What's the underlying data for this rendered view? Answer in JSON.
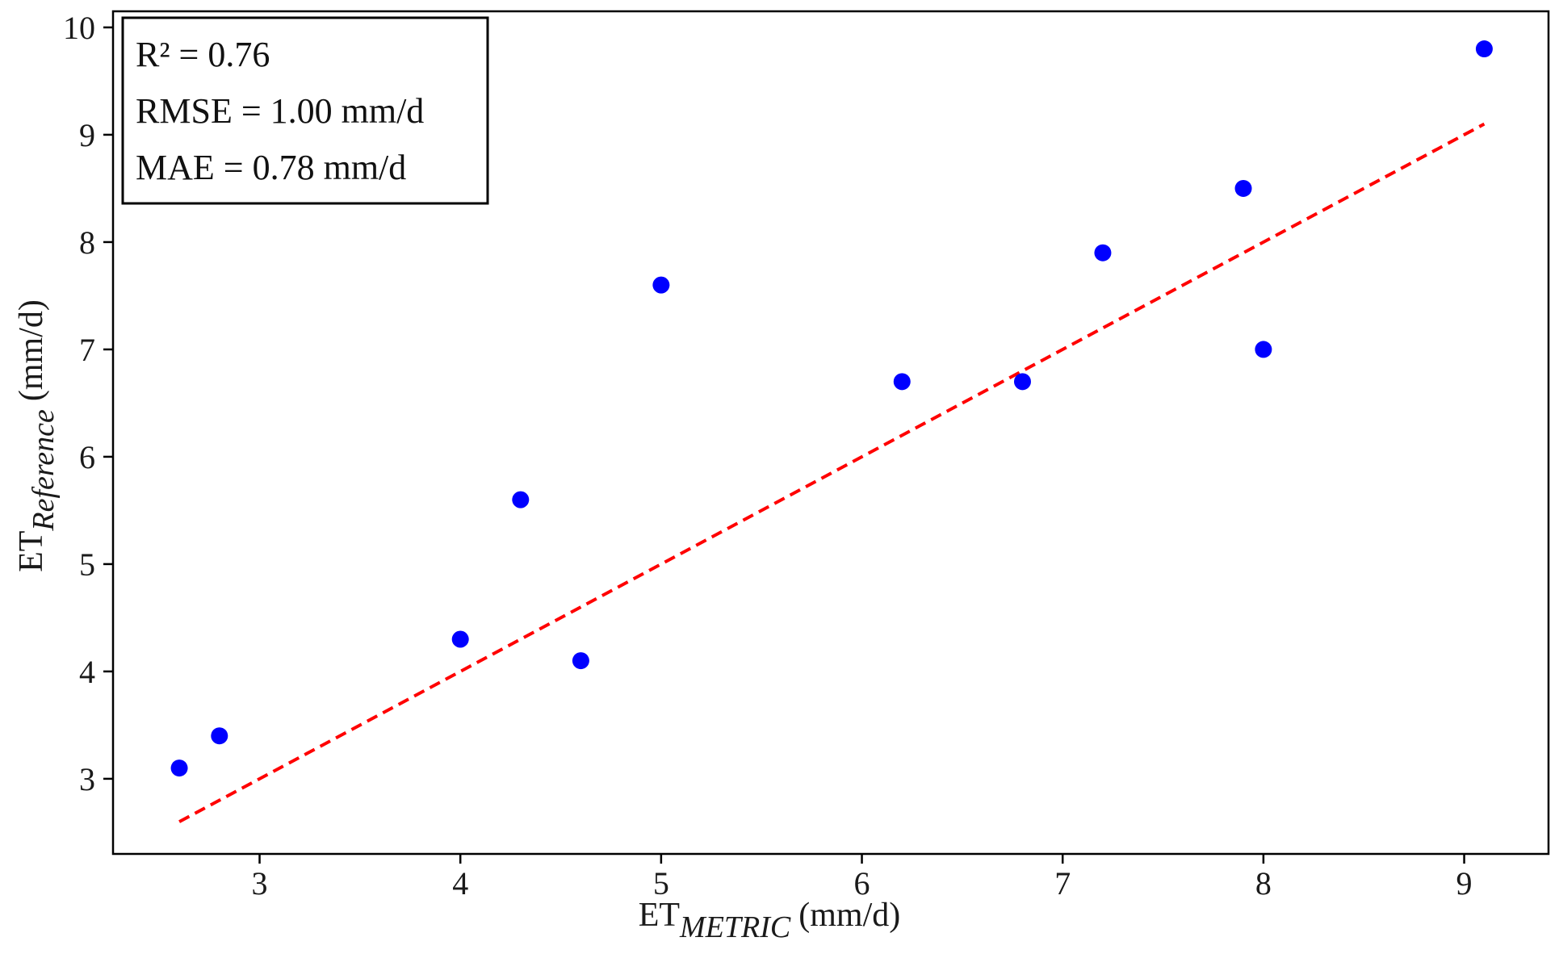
{
  "chart_data": {
    "type": "scatter",
    "title": "",
    "xlabel": {
      "main": "ET",
      "sub": "METRIC",
      "unit": "(mm/d)"
    },
    "ylabel": {
      "main": "ET",
      "sub": "Reference",
      "unit": "(mm/d)"
    },
    "xlim": [
      2.27,
      9.42
    ],
    "ylim": [
      2.3,
      10.15
    ],
    "xticks": [
      3,
      4,
      5,
      6,
      7,
      8,
      9
    ],
    "yticks": [
      3,
      4,
      5,
      6,
      7,
      8,
      9,
      10
    ],
    "grid": false,
    "series": [
      {
        "name": "observations",
        "kind": "scatter",
        "color": "#0000ff",
        "x": [
          2.6,
          2.8,
          4.0,
          4.3,
          4.6,
          5.0,
          6.2,
          6.8,
          7.2,
          7.9,
          8.0,
          9.1
        ],
        "y": [
          3.1,
          3.4,
          4.3,
          5.6,
          4.1,
          7.6,
          6.7,
          6.7,
          7.9,
          8.5,
          7.0,
          9.8
        ]
      },
      {
        "name": "1:1 line",
        "kind": "line",
        "style": "dashed",
        "color": "#ff0000",
        "x": [
          2.6,
          9.1
        ],
        "y": [
          2.6,
          9.1
        ]
      }
    ],
    "stats": {
      "r2": "R² = 0.76",
      "rmse": "RMSE = 1.00 mm/d",
      "mae": "MAE = 0.78 mm/d"
    }
  }
}
